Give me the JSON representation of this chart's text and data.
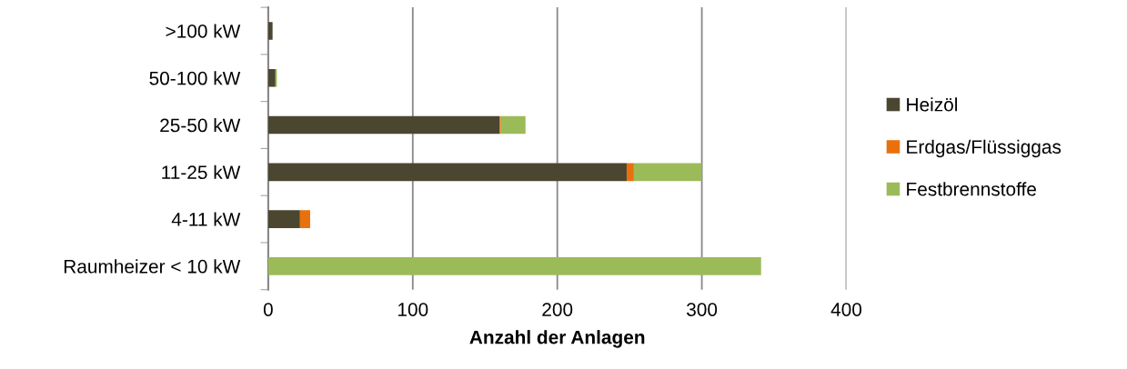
{
  "chart_data": {
    "type": "bar",
    "orientation": "horizontal",
    "stacked": true,
    "xlabel": "Anzahl der Anlagen",
    "categories": [
      ">100 kW",
      "50-100 kW",
      "25-50 kW",
      "11-25 kW",
      "4-11 kW",
      "Raumheizer < 10 kW"
    ],
    "series": [
      {
        "name": "Heizöl",
        "color": "#4b4630",
        "values": [
          3,
          5,
          160,
          248,
          22,
          0
        ]
      },
      {
        "name": "Erdgas/Flüssiggas",
        "color": "#e8710e",
        "values": [
          0,
          0,
          1,
          5,
          7,
          0
        ]
      },
      {
        "name": "Festbrennstoffe",
        "color": "#9bbb59",
        "values": [
          0,
          1,
          17,
          47,
          0,
          341
        ]
      }
    ],
    "xlim": [
      0,
      400
    ],
    "xticks": [
      0,
      100,
      200,
      300,
      400
    ],
    "grid": "x",
    "legend": "right"
  }
}
